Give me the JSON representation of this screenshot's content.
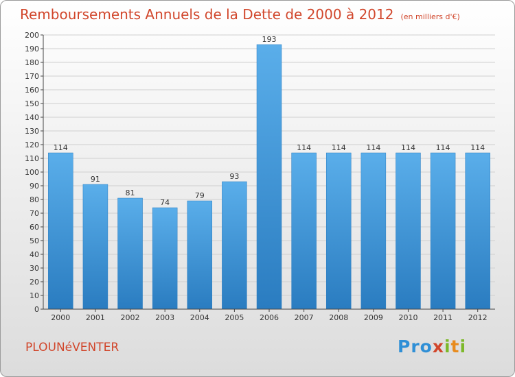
{
  "header": {
    "title": "Remboursements Annuels de la Dette de 2000 à 2012",
    "unit": "(en milliers d'€)"
  },
  "commune": "PLOUNéVENTER",
  "logo_text": "Proxiti",
  "chart_data": {
    "type": "bar",
    "title": "Remboursements Annuels de la Dette de 2000 à 2012",
    "subtitle": "(en milliers d'€)",
    "categories": [
      "2000",
      "2001",
      "2002",
      "2003",
      "2004",
      "2005",
      "2006",
      "2007",
      "2008",
      "2009",
      "2010",
      "2011",
      "2012"
    ],
    "values": [
      114,
      91,
      81,
      74,
      79,
      93,
      193,
      114,
      114,
      114,
      114,
      114,
      114
    ],
    "ylim": [
      0,
      200
    ],
    "ytick_step": 10,
    "grid": true,
    "bar_color": "#3d94d6"
  }
}
